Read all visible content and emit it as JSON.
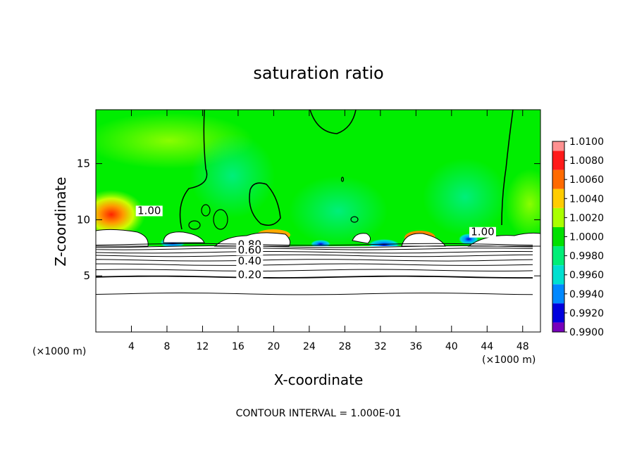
{
  "chart_data": {
    "type": "heatmap",
    "title": "saturation ratio",
    "xlabel": "X-coordinate",
    "ylabel": "Z-coordinate",
    "x_unit_label": "(×1000 m)",
    "y_unit_label": "(×1000 m)",
    "footer": "CONTOUR INTERVAL = 1.000E-01",
    "xlim": [
      0,
      50
    ],
    "ylim": [
      0,
      19.8
    ],
    "x_ticks": [
      4,
      8,
      12,
      16,
      20,
      24,
      28,
      32,
      36,
      40,
      44,
      48
    ],
    "y_ticks": [
      5,
      10,
      15
    ],
    "colorbar": {
      "labels": [
        "1.0100",
        "1.0080",
        "1.0060",
        "1.0040",
        "1.0020",
        "1.0000",
        "0.9980",
        "0.9960",
        "0.9940",
        "0.9920",
        "0.9900"
      ],
      "values": [
        1.01,
        1.008,
        1.006,
        1.004,
        1.002,
        1.0,
        0.998,
        0.996,
        0.994,
        0.992,
        0.99
      ],
      "colors": [
        "#ff9090",
        "#ff1a1a",
        "#ff6a00",
        "#ffcc00",
        "#aaff00",
        "#00e000",
        "#00ee77",
        "#00e0d0",
        "#0088ff",
        "#0000dd",
        "#7700bb"
      ]
    },
    "contour_labels": [
      {
        "text": "1.00",
        "x": 6.0,
        "z": 10.5
      },
      {
        "text": "1.00",
        "x": 43.5,
        "z": 8.6
      },
      {
        "text": "0.80",
        "x": 17.3,
        "z": 7.5
      },
      {
        "text": "0.60",
        "x": 17.3,
        "z": 7.0
      },
      {
        "text": "0.40",
        "x": 17.3,
        "z": 6.0
      },
      {
        "text": "0.20",
        "x": 17.3,
        "z": 4.8
      }
    ],
    "contour_lines_z": [
      3.4,
      4.9,
      5.5,
      6.0,
      6.4,
      6.8,
      7.1,
      7.4,
      7.6,
      7.8
    ]
  }
}
